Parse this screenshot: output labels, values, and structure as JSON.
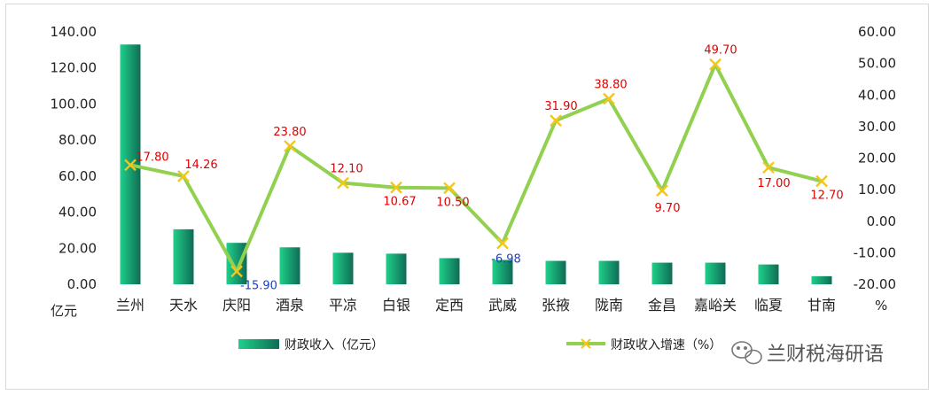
{
  "chart_data": {
    "type": "bar+line",
    "categories": [
      "兰州",
      "天水",
      "庆阳",
      "酒泉",
      "平凉",
      "白银",
      "定西",
      "武威",
      "张掖",
      "陇南",
      "金昌",
      "嘉峪关",
      "临夏",
      "甘南"
    ],
    "series": [
      {
        "name": "财政收入（亿元）",
        "type": "bar",
        "axis": "left",
        "values": [
          133.0,
          30.5,
          23.0,
          20.5,
          17.5,
          17.0,
          14.5,
          13.5,
          13.0,
          13.0,
          12.0,
          12.0,
          11.0,
          4.5
        ]
      },
      {
        "name": "财政收入增速（%）",
        "type": "line",
        "axis": "right",
        "values": [
          17.8,
          14.26,
          -15.9,
          23.8,
          12.1,
          10.67,
          10.5,
          -6.98,
          31.9,
          38.8,
          9.7,
          49.7,
          17.0,
          12.7
        ],
        "labels": [
          "17.80",
          "14.26",
          "-15.90",
          "23.80",
          "12.10",
          "10.67",
          "10.50",
          "-6.98",
          "31.90",
          "38.80",
          "9.70",
          "49.70",
          "17.00",
          "12.70"
        ]
      }
    ],
    "left_axis": {
      "min": 0,
      "max": 140,
      "step": 20,
      "ticks": [
        "0.00",
        "20.00",
        "40.00",
        "60.00",
        "80.00",
        "100.00",
        "120.00",
        "140.00"
      ],
      "unit": "亿元"
    },
    "right_axis": {
      "min": -20,
      "max": 60,
      "step": 10,
      "ticks": [
        "-20.00",
        "-10.00",
        "0.00",
        "10.00",
        "20.00",
        "30.00",
        "40.00",
        "50.00",
        "60.00"
      ],
      "unit": "%"
    },
    "legend": {
      "placement": "bottom",
      "items": [
        "财政收入（亿元）",
        "财政收入增速（%）"
      ]
    },
    "colors": {
      "bar_light": "#1fd08a",
      "bar_dark": "#0f6b55",
      "line": "#92d050",
      "marker": "#f5c518",
      "label_positive": "#e00000",
      "label_negative": "#1f3fbf"
    },
    "grid": false
  },
  "watermark": {
    "text": "兰财税海研语",
    "icon": "wechat-icon"
  }
}
